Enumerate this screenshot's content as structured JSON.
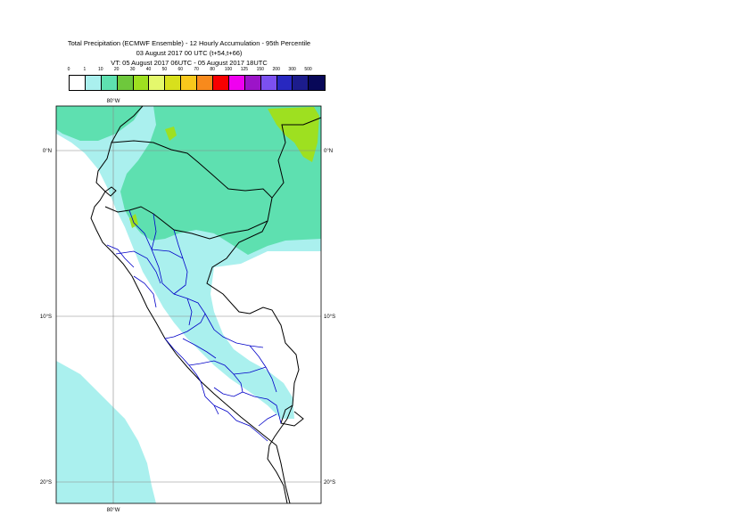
{
  "title": {
    "line1": "Total Precipitation (ECMWF Ensemble) - 12 Hourly Accumulation - 95th Percentile",
    "line2": "03 August 2017 00 UTC (t+54,t+66)",
    "line3": "VT: 05 August 2017 06UTC - 05 August 2017 18UTC"
  },
  "legend": {
    "labels": [
      "0",
      "1",
      "10",
      "20",
      "30",
      "40",
      "50",
      "60",
      "70",
      "80",
      "100",
      "125",
      "150",
      "200",
      "300",
      "500"
    ],
    "colors": [
      "#ffffff",
      "#aaf0ee",
      "#5ee0b0",
      "#6ec83c",
      "#9ee020",
      "#e4f86c",
      "#d8e01c",
      "#f8c81c",
      "#f88a1c",
      "#f80000",
      "#f000f0",
      "#9c14c8",
      "#7c50f0",
      "#2828c0",
      "#1c1c8c",
      "#080858"
    ]
  },
  "map": {
    "lon_labels": [
      "80°W",
      "80°W"
    ],
    "lat_labels": [
      "0°N",
      "10°S",
      "20°S"
    ],
    "lat_labels_right": [
      "0°N",
      "10°S",
      "20°S"
    ],
    "colors": {
      "light_cyan": "#aaf0ee",
      "medium_green": "#5ee0b0",
      "yellow_green": "#9ee020",
      "border_black": "#000000",
      "border_blue": "#0000c8",
      "grid": "#888888"
    }
  }
}
